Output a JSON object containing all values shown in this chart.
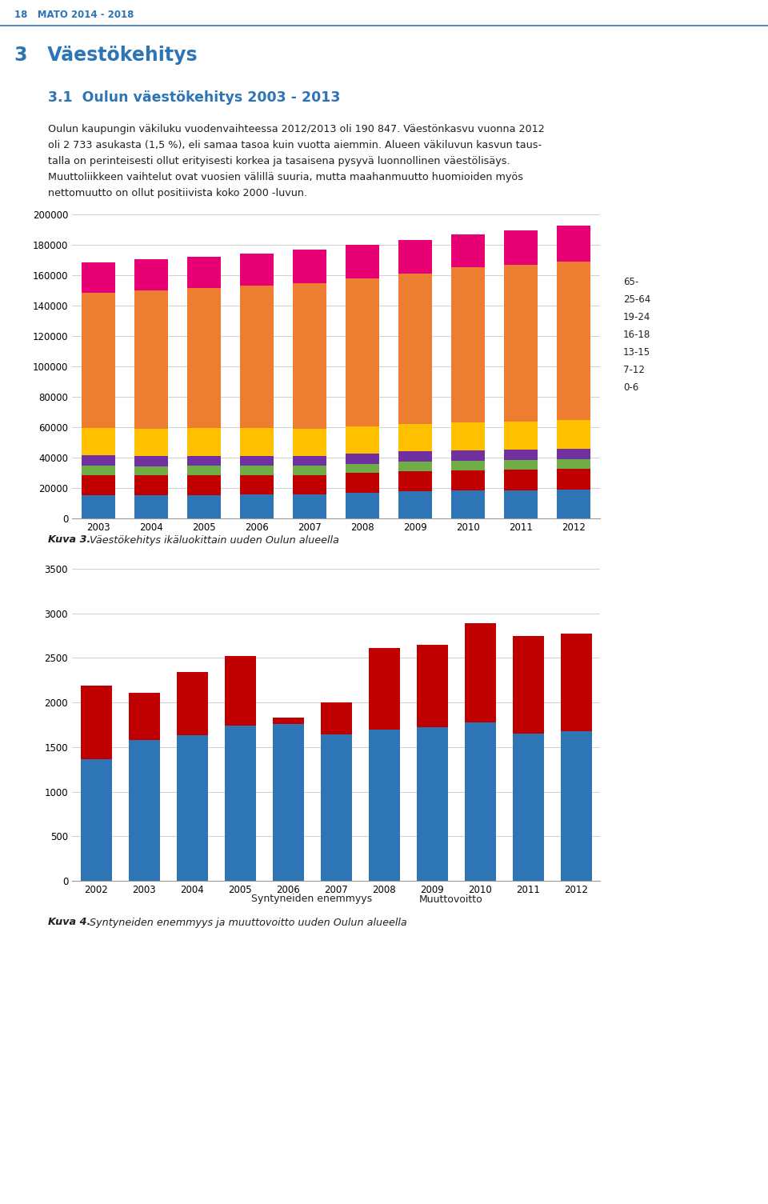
{
  "page_header": "18   MATO 2014 - 2018",
  "section_title": "3   Väestökehitys",
  "subsection_title": "3.1  Oulun väestökehitys 2003 - 2013",
  "para_line1": "Oulun kaupungin väkiluku vuodenvaihteessa 2012/2013 oli 190 847. Väestönkasvu vuonna 2012",
  "para_line2": "oli 2 733 asukasta (1,5 %), eli samaa tasoa kuin vuotta aiemmin. Alueen väkiluvun kasvun taus-",
  "para_line3": "talla on perinteisesti ollut erityisesti korkea ja tasaisena pysyvä luonnollinen väestölisäys.",
  "para_line4": "Muuttoliikkeen vaihtelut ovat vuosien välillä suuria, mutta maahanmuutto huomioiden myös",
  "para_line5": "nettomuutto on ollut positiivista koko 2000 -luvun.",
  "chart1_caption_bold": "Kuva 3.",
  "chart1_caption_rest": " Väestökehitys ikäluokittain uuden Oulun alueella",
  "chart2_caption_bold": "Kuva 4.",
  "chart2_caption_rest": " Syntyneiden enemmyys ja muuttovoitto uuden Oulun alueella",
  "chart1_years": [
    2003,
    2004,
    2005,
    2006,
    2007,
    2008,
    2009,
    2010,
    2011,
    2012
  ],
  "chart1_data": {
    "0-6": [
      15300,
      15400,
      15500,
      15700,
      16000,
      17000,
      17800,
      18200,
      18500,
      18700
    ],
    "7-12": [
      13000,
      12800,
      12800,
      12700,
      12500,
      12800,
      13200,
      13200,
      13500,
      13700
    ],
    "13-15": [
      6500,
      6200,
      6200,
      6200,
      6200,
      6200,
      6400,
      6500,
      6600,
      6700
    ],
    "16-18": [
      6800,
      6600,
      6600,
      6600,
      6500,
      6500,
      6600,
      6700,
      6800,
      6900
    ],
    "19-24": [
      18000,
      18000,
      18200,
      18200,
      18000,
      18000,
      18200,
      18500,
      18500,
      18600
    ],
    "25-64": [
      89000,
      91000,
      92500,
      93500,
      95500,
      97500,
      99000,
      102000,
      103000,
      104500
    ],
    "65-": [
      19800,
      20300,
      20400,
      21200,
      22000,
      21900,
      22000,
      22000,
      22500,
      23300
    ]
  },
  "chart1_colors": {
    "0-6": "#2e75b6",
    "7-12": "#c00000",
    "13-15": "#70ad47",
    "16-18": "#7030a0",
    "19-24": "#ffc000",
    "25-64": "#ed7d31",
    "65-": "#e60073"
  },
  "chart1_ylim": [
    0,
    200000
  ],
  "chart1_yticks": [
    0,
    20000,
    40000,
    60000,
    80000,
    100000,
    120000,
    140000,
    160000,
    180000,
    200000
  ],
  "chart2_years": [
    2002,
    2003,
    2004,
    2005,
    2006,
    2007,
    2008,
    2009,
    2010,
    2011,
    2012
  ],
  "chart2_syntyneiden": [
    1360,
    1580,
    1630,
    1740,
    1760,
    1640,
    1700,
    1720,
    1780,
    1650,
    1680
  ],
  "chart2_muutto": [
    830,
    530,
    710,
    780,
    70,
    360,
    910,
    930,
    1110,
    1100,
    1090
  ],
  "chart2_colors": {
    "syntyneiden": "#2e75b6",
    "muutto": "#c00000"
  },
  "chart2_ylim": [
    0,
    3500
  ],
  "chart2_yticks": [
    0,
    500,
    1000,
    1500,
    2000,
    2500,
    3000,
    3500
  ],
  "header_color": "#2e75b6",
  "text_color": "#231f20",
  "line_color": "#2e75b6",
  "grid_color": "#d0d0d0"
}
